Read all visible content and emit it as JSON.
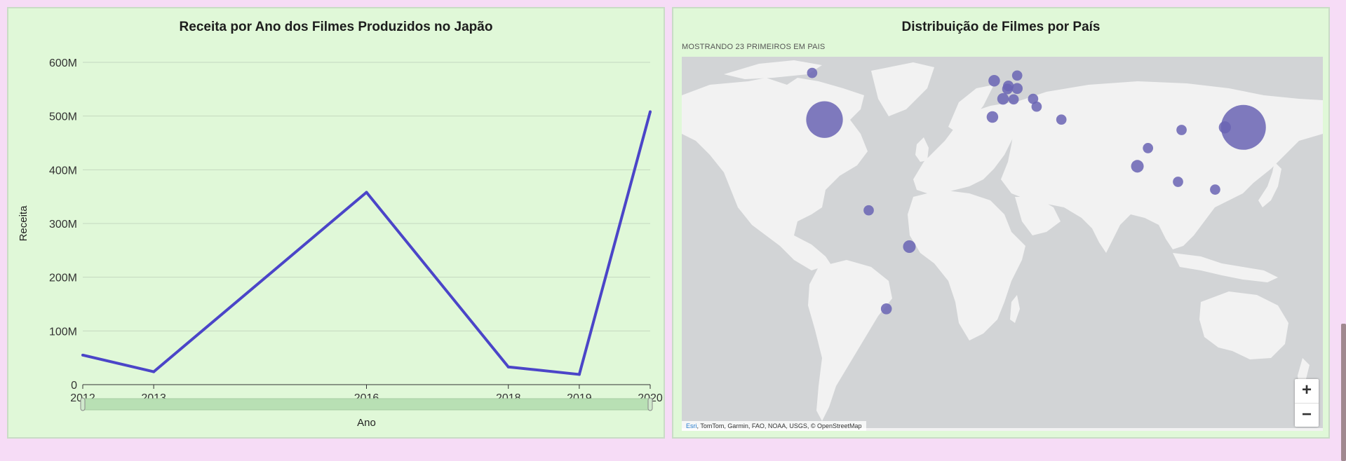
{
  "left_panel": {
    "title": "Receita por Ano dos Filmes Produzidos no Japão"
  },
  "right_panel": {
    "title": "Distribuição de Filmes por País",
    "subtitle": "MOSTRANDO 23 PRIMEIROS EM PAIS",
    "attribution_link": "Esri",
    "attribution_text": ", TomTom, Garmin, FAO, NOAA, USGS, © OpenStreetMap",
    "zoom_in_label": "+",
    "zoom_out_label": "−"
  },
  "colors": {
    "line": "#4b45c8",
    "bubble": "#6a64b4",
    "panel_bg": "#e0f8d8",
    "page_bg": "#f6dcf6",
    "land": "#f2f2f2",
    "water": "#d2d4d6"
  },
  "chart_data": [
    {
      "type": "line",
      "title": "Receita por Ano dos Filmes Produzidos no Japão",
      "xlabel": "Ano",
      "ylabel": "Receita",
      "x": [
        2012,
        2013,
        2016,
        2018,
        2019,
        2020
      ],
      "x_tick_labels": [
        "2012",
        "2013",
        "2016",
        "2018",
        "2019",
        "2020"
      ],
      "series": [
        {
          "values": [
            55000000,
            24000000,
            358000000,
            33000000,
            19000000,
            508000000
          ]
        }
      ],
      "ylim": [
        0,
        600000000
      ],
      "y_ticks": [
        0,
        100000000,
        200000000,
        300000000,
        400000000,
        500000000,
        600000000
      ],
      "y_tick_labels": [
        "0",
        "100M",
        "200M",
        "300M",
        "400M",
        "500M",
        "600M"
      ],
      "grid": true,
      "range_slider": true
    },
    {
      "type": "scatter",
      "subtype": "bubble-map",
      "title": "Distribuição de Filmes por País",
      "points": [
        {
          "id": "japan",
          "lon": 138,
          "lat": 36,
          "size": 100
        },
        {
          "id": "usa",
          "lon": -99,
          "lat": 39,
          "size": 60
        },
        {
          "id": "canada",
          "lon": -106,
          "lat": 57,
          "size": 8
        },
        {
          "id": "uk",
          "lon": -3,
          "lat": 54,
          "size": 12
        },
        {
          "id": "denmark",
          "lon": 10,
          "lat": 56,
          "size": 8
        },
        {
          "id": "netherlands",
          "lon": 5,
          "lat": 52,
          "size": 9
        },
        {
          "id": "belgium",
          "lon": 4.5,
          "lat": 50.8,
          "size": 9
        },
        {
          "id": "germany",
          "lon": 10,
          "lat": 51,
          "size": 10
        },
        {
          "id": "france",
          "lon": 2,
          "lat": 47,
          "size": 12
        },
        {
          "id": "switzerland",
          "lon": 8,
          "lat": 46.8,
          "size": 8
        },
        {
          "id": "spain",
          "lon": -4,
          "lat": 40,
          "size": 12
        },
        {
          "id": "hungary",
          "lon": 19,
          "lat": 47,
          "size": 8
        },
        {
          "id": "serbia",
          "lon": 21,
          "lat": 44,
          "size": 8
        },
        {
          "id": "turkey",
          "lon": 35,
          "lat": 39,
          "size": 8
        },
        {
          "id": "nepal",
          "lon": 84,
          "lat": 28,
          "size": 8
        },
        {
          "id": "india",
          "lon": 78,
          "lat": 21,
          "size": 16
        },
        {
          "id": "china",
          "lon": 103,
          "lat": 35,
          "size": 8
        },
        {
          "id": "south-korea",
          "lon": 127.5,
          "lat": 36,
          "size": 14
        },
        {
          "id": "thailand",
          "lon": 101,
          "lat": 15,
          "size": 8
        },
        {
          "id": "philippines",
          "lon": 122,
          "lat": 12,
          "size": 8
        },
        {
          "id": "colombia",
          "lon": -74,
          "lat": 4,
          "size": 8
        },
        {
          "id": "brazil",
          "lon": -51,
          "lat": -10,
          "size": 16
        },
        {
          "id": "argentina",
          "lon": -64,
          "lat": -34,
          "size": 10
        }
      ]
    }
  ]
}
